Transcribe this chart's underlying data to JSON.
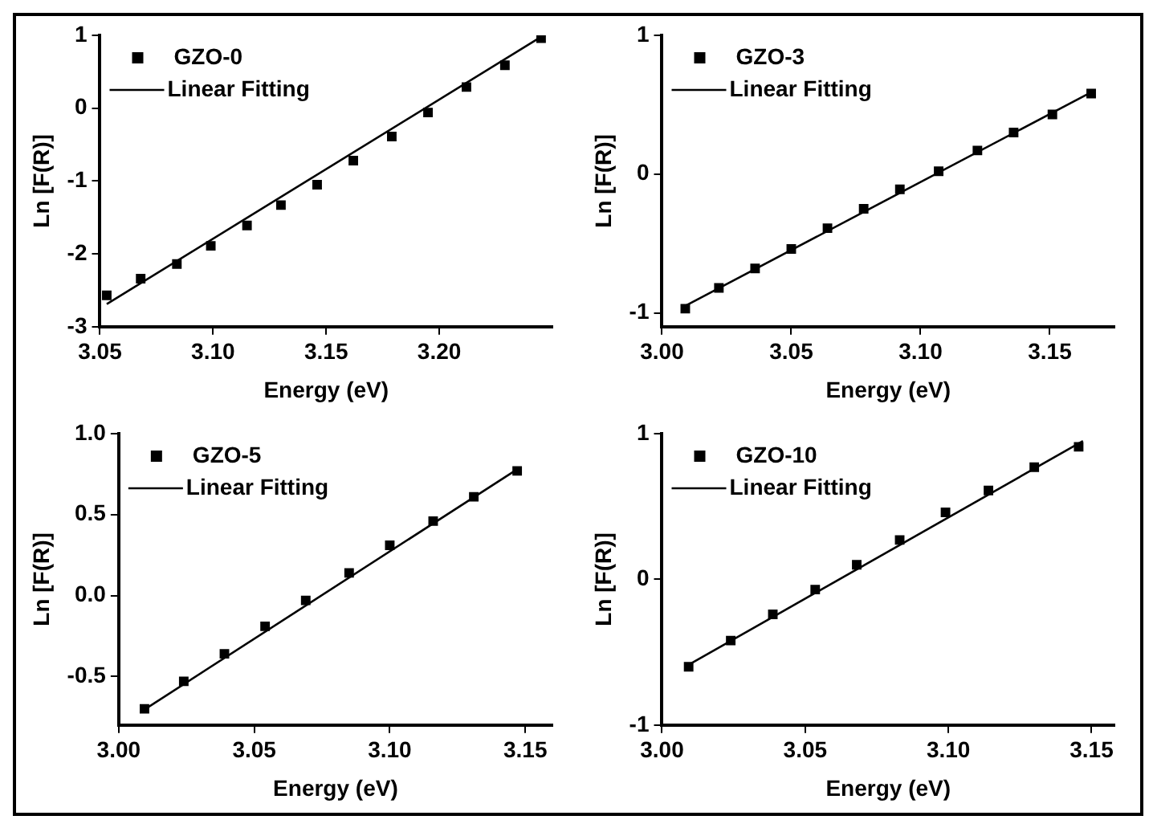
{
  "chart_data": [
    {
      "type": "scatter",
      "xlabel": "Energy (eV)",
      "ylabel": "Ln [F(R)]",
      "xlim": [
        3.05,
        3.25
      ],
      "xticks": [
        {
          "value": 3.05,
          "label": "3.05"
        },
        {
          "value": 3.1,
          "label": "3.10"
        },
        {
          "value": 3.15,
          "label": "3.15"
        },
        {
          "value": 3.2,
          "label": "3.20"
        }
      ],
      "ylim": [
        -3,
        1
      ],
      "yticks": [
        -3,
        -2,
        -1,
        0,
        1
      ],
      "grid": false,
      "legend": "top left",
      "series": [
        {
          "name": "GZO-0",
          "type": "scatter",
          "marker": "square",
          "color": "#000000",
          "x": [
            3.053,
            3.068,
            3.084,
            3.099,
            3.115,
            3.13,
            3.146,
            3.162,
            3.179,
            3.195,
            3.212,
            3.229,
            3.245
          ],
          "values": [
            -2.57,
            -2.34,
            -2.14,
            -1.89,
            -1.61,
            -1.33,
            -1.05,
            -0.72,
            -0.39,
            -0.06,
            0.29,
            0.59,
            0.96
          ]
        },
        {
          "name": "Linear Fitting",
          "type": "line",
          "marker": "none",
          "color": "#000000",
          "x": [
            3.053,
            3.245
          ],
          "values": [
            -2.69,
            0.98
          ]
        }
      ]
    },
    {
      "type": "scatter",
      "xlabel": "Energy (eV)",
      "ylabel": "Ln [F(R)]",
      "xlim": [
        3.0,
        3.175
      ],
      "xticks": [
        {
          "value": 3.0,
          "label": "3.00"
        },
        {
          "value": 3.05,
          "label": "3.05"
        },
        {
          "value": 3.1,
          "label": "3.10"
        },
        {
          "value": 3.15,
          "label": "3.15"
        }
      ],
      "ylim": [
        -1.1,
        1
      ],
      "yticks": [
        -1,
        0,
        1
      ],
      "grid": false,
      "legend": "top left",
      "series": [
        {
          "name": "GZO-3",
          "type": "scatter",
          "marker": "square",
          "color": "#000000",
          "x": [
            3.009,
            3.022,
            3.036,
            3.05,
            3.064,
            3.078,
            3.092,
            3.107,
            3.122,
            3.136,
            3.151,
            3.166
          ],
          "values": [
            -0.97,
            -0.82,
            -0.68,
            -0.54,
            -0.39,
            -0.25,
            -0.11,
            0.02,
            0.17,
            0.3,
            0.43,
            0.58
          ]
        },
        {
          "name": "Linear Fitting",
          "type": "line",
          "marker": "none",
          "color": "#000000",
          "x": [
            3.009,
            3.166
          ],
          "values": [
            -0.95,
            0.59
          ]
        }
      ]
    },
    {
      "type": "scatter",
      "xlabel": "Energy (eV)",
      "ylabel": "Ln [F(R)]",
      "xlim": [
        3.0,
        3.16
      ],
      "xticks": [
        {
          "value": 3.0,
          "label": "3.00"
        },
        {
          "value": 3.05,
          "label": "3.05"
        },
        {
          "value": 3.1,
          "label": "3.10"
        },
        {
          "value": 3.15,
          "label": "3.15"
        }
      ],
      "ylim": [
        -0.8,
        1.0
      ],
      "yticks": [
        {
          "value": -0.5,
          "label": "-0.5"
        },
        {
          "value": 0,
          "label": "0.0"
        },
        {
          "value": 0.5,
          "label": "0.5"
        },
        {
          "value": 1,
          "label": "1.0"
        }
      ],
      "grid": false,
      "legend": "top left",
      "series": [
        {
          "name": "GZO-5",
          "type": "scatter",
          "marker": "square",
          "color": "#000000",
          "x": [
            3.0095,
            3.024,
            3.039,
            3.054,
            3.069,
            3.085,
            3.1,
            3.116,
            3.131,
            3.147
          ],
          "values": [
            -0.7,
            -0.53,
            -0.36,
            -0.19,
            -0.03,
            0.14,
            0.31,
            0.46,
            0.61,
            0.77
          ]
        },
        {
          "name": "Linear Fitting",
          "type": "line",
          "marker": "none",
          "color": "#000000",
          "x": [
            3.009,
            3.147
          ],
          "values": [
            -0.71,
            0.78
          ]
        }
      ]
    },
    {
      "type": "scatter",
      "xlabel": "Energy (eV)",
      "ylabel": "Ln [F(R)]",
      "xlim": [
        3.0,
        3.158
      ],
      "xticks": [
        {
          "value": 3.0,
          "label": "3.00"
        },
        {
          "value": 3.05,
          "label": "3.05"
        },
        {
          "value": 3.1,
          "label": "3.10"
        },
        {
          "value": 3.15,
          "label": "3.15"
        }
      ],
      "ylim": [
        -1,
        1
      ],
      "yticks": [
        -1,
        0,
        1
      ],
      "grid": false,
      "legend": "top left",
      "series": [
        {
          "name": "GZO-10",
          "type": "scatter",
          "marker": "square",
          "color": "#000000",
          "x": [
            3.0093,
            3.024,
            3.0387,
            3.0535,
            3.068,
            3.083,
            3.099,
            3.114,
            3.13,
            3.1455
          ],
          "values": [
            -0.6,
            -0.42,
            -0.24,
            -0.07,
            0.1,
            0.27,
            0.46,
            0.61,
            0.77,
            0.91
          ]
        },
        {
          "name": "Linear Fitting",
          "type": "line",
          "marker": "none",
          "color": "#000000",
          "x": [
            3.009,
            3.147
          ],
          "values": [
            -0.59,
            0.95
          ]
        }
      ]
    }
  ]
}
